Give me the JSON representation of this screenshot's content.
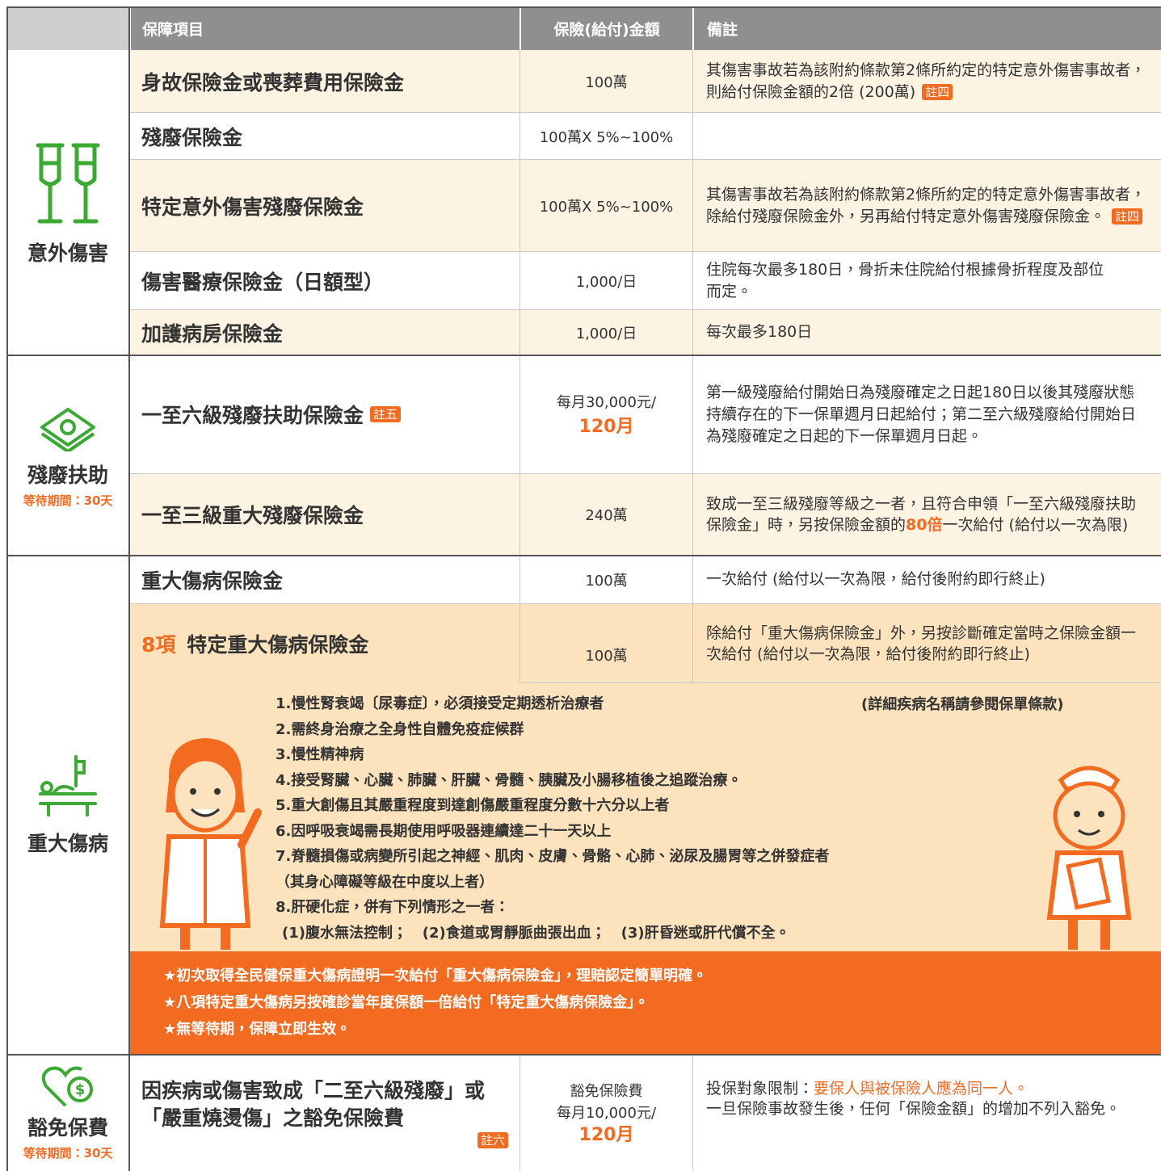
{
  "header": {
    "columns": [
      "保障項目",
      "保險(給付)金額",
      "備註"
    ]
  },
  "sections": [
    {
      "category": "意外傷害",
      "rows": [
        {
          "item": [
            "身故保險金或喪葬費用保險金"
          ],
          "amount": [
            "100萬"
          ],
          "remark": [
            "其傷害事故若為該附約條款第2條所約定的特定意外傷害事故者，則給付保險金額的2倍 (200萬)",
            "註四"
          ]
        },
        {
          "item": [
            "殘廢保險金"
          ],
          "amount": [
            "100萬X 5%~100%"
          ]
        },
        {
          "item": [
            "特定意外傷害殘廢保險金"
          ],
          "amount": [
            "100萬X 5%~100%"
          ],
          "remark": [
            "其傷害事故若為該附約條款第2條所約定的特定意外傷害事故者，除給付殘廢保險金外，另再給付特定意外傷害殘廢保險金。",
            "註四"
          ]
        },
        {
          "item": [
            "傷害醫療保險金（日額型）"
          ],
          "amount": [
            "1,000/日"
          ],
          "remark": [
            "住院每次最多180日，骨折未住院給付根據骨折程度及部位而定。"
          ]
        },
        {
          "item": [
            "加護病房保險金"
          ],
          "amount": [
            "1,000/日"
          ],
          "remark": [
            "每次最多180日"
          ]
        }
      ]
    },
    {
      "category": "殘廢扶助",
      "waiting": "等待期間：30天",
      "rows": [
        {
          "item": [
            "一至六級殘廢扶助保險金",
            "註五"
          ],
          "amount": [
            "每月30,000元/",
            "120月"
          ],
          "remark": [
            "第一級殘廢給付開始日為殘廢確定之日起180日以後其殘廢狀態持續存在的下一保單週月日起給付；第二至六級殘廢給付開始日為殘廢確定之日起的下一保單週月日起。"
          ]
        },
        {
          "item": [
            "一至三級重大殘廢保險金"
          ],
          "amount": [
            "240萬"
          ],
          "remark": [
            "致成一至三級殘廢等級之一者，且符合申領「一至六級殘廢扶助保險金」時，另按保險金額的",
            "80倍",
            "一次給付 (給付以一次為限)"
          ]
        }
      ]
    },
    {
      "category": "重大傷病",
      "rows": [
        {
          "item": [
            "重大傷病保險金"
          ],
          "amount": [
            "100萬"
          ],
          "remark": [
            "一次給付 (給付以一次為限，給付後附約即行終止)"
          ]
        },
        {
          "item": [
            "8項",
            "特定重大傷病保險金"
          ],
          "amount": [
            "100萬"
          ],
          "remark": [
            "除給付「重大傷病保險金」外，另按診斷確定當時之保險金額一次給付 (給付以一次為限，給付後附約即行終止)"
          ]
        }
      ],
      "list": {
        "note": "(詳細疾病名稱請參閱保單條款)",
        "items": [
          "1.慢性腎衰竭〔尿毒症〕，必須接受定期透析治療者",
          "2.需終身治療之全身性自體免疫症候群",
          "3.慢性精神病",
          "4.接受腎臟、心臟、肺臟、肝臟、骨髓、胰臟及小腸移植後之追蹤治療。",
          "5.重大創傷且其嚴重程度到達創傷嚴重程度分數十六分以上者",
          "6.因呼吸衰竭需長期使用呼吸器連續達二十一天以上",
          "7.脊髓損傷或病變所引起之神經、肌肉、皮膚、骨骼、心肺、泌尿及腸胃等之併發症者",
          "（其身心障礙等級在中度以上者）",
          "8.肝硬化症，併有下列情形之一者："
        ],
        "sub": [
          "(1)腹水無法控制；",
          "(2)食道或胃靜脈曲張出血；",
          "(3)肝昏迷或肝代償不全。"
        ]
      },
      "highlights": [
        "★初次取得全民健保重大傷病證明一次給付「重大傷病保險金」，理賠認定簡單明確。",
        "★八項特定重大傷病另按確診當年度保額一倍給付「特定重大傷病保險金」。",
        "★無等待期，保障立即生效。"
      ]
    },
    {
      "category": "豁免保費",
      "waiting": "等待期間：30天",
      "rows": [
        {
          "item": [
            "因疾病或傷害致成「二至六級殘廢」或「嚴重燒燙傷」之豁免保險費",
            "註六"
          ],
          "amount": [
            "豁免保險費",
            "每月10,000元/",
            "120月"
          ],
          "remark": [
            "投保對象限制：",
            "要保人與被保險人應為同一人。",
            "一旦保險事故發生後，任何「保險金額」的增加不列入豁免。"
          ]
        }
      ]
    }
  ]
}
